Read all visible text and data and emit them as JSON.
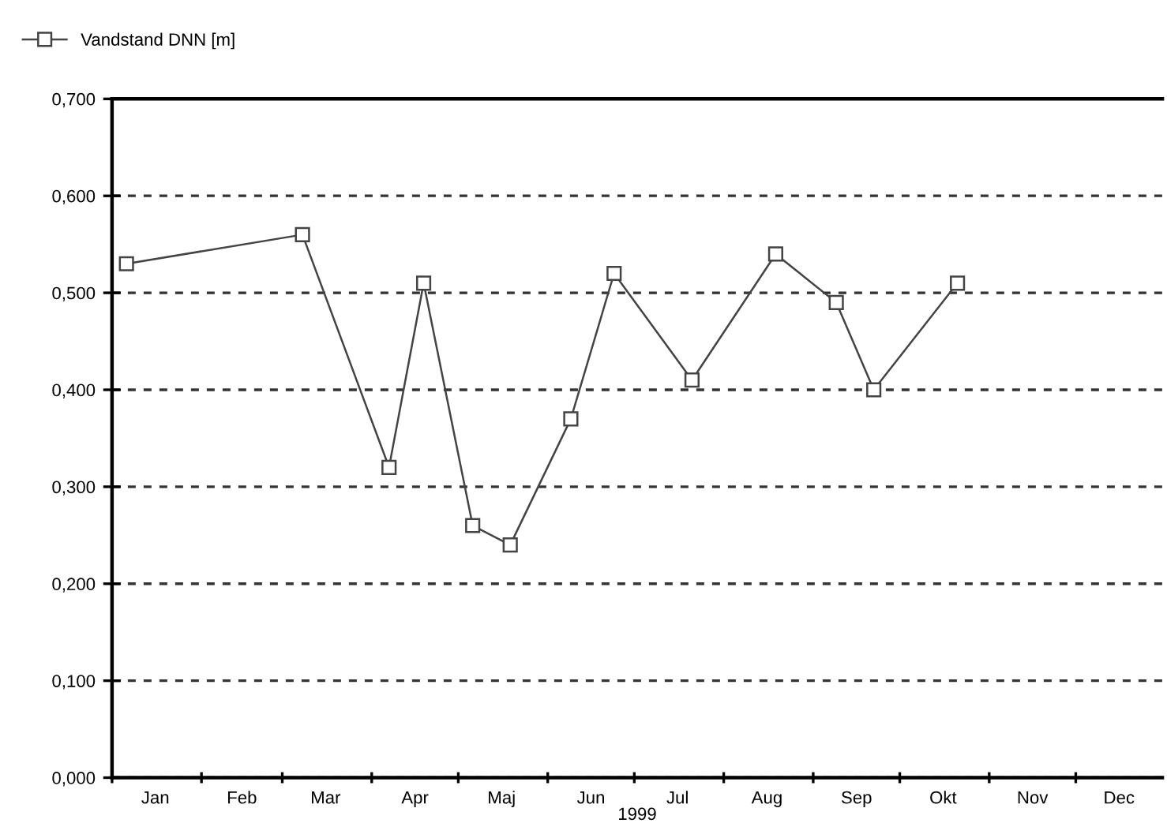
{
  "chart_data": {
    "type": "line",
    "xlabel": "1999",
    "x": [
      "1999-01-06",
      "1999-03-08",
      "1999-04-07",
      "1999-04-19",
      "1999-05-06",
      "1999-05-19",
      "1999-06-09",
      "1999-06-24",
      "1999-07-21",
      "1999-08-19",
      "1999-09-09",
      "1999-09-22",
      "1999-10-21"
    ],
    "series": [
      {
        "name": "Vandstand DNN [m]",
        "color": "#444444",
        "values": [
          0.53,
          0.56,
          0.32,
          0.51,
          0.26,
          0.24,
          0.37,
          0.52,
          0.41,
          0.54,
          0.49,
          0.4,
          0.51
        ]
      }
    ],
    "xlim": [
      "1999-01-01",
      "1999-12-31"
    ],
    "xticks": [
      {
        "value": "1999-01-01",
        "label": null
      },
      {
        "value": "1999-02-01",
        "label": null
      },
      {
        "value": "1999-03-01",
        "label": null
      },
      {
        "value": "1999-04-01",
        "label": null
      },
      {
        "value": "1999-05-01",
        "label": null
      },
      {
        "value": "1999-06-01",
        "label": null
      },
      {
        "value": "1999-07-01",
        "label": null
      },
      {
        "value": "1999-08-01",
        "label": null
      },
      {
        "value": "1999-09-01",
        "label": null
      },
      {
        "value": "1999-10-01",
        "label": null
      },
      {
        "value": "1999-11-01",
        "label": null
      },
      {
        "value": "1999-12-01",
        "label": null
      },
      {
        "value": "1999-01-16",
        "label": "Jan"
      },
      {
        "value": "1999-02-15",
        "label": "Feb"
      },
      {
        "value": "1999-03-16",
        "label": "Mar"
      },
      {
        "value": "1999-04-16",
        "label": "Apr"
      },
      {
        "value": "1999-05-16",
        "label": "Maj"
      },
      {
        "value": "1999-06-16",
        "label": "Jun"
      },
      {
        "value": "1999-07-16",
        "label": "Jul"
      },
      {
        "value": "1999-08-16",
        "label": "Aug"
      },
      {
        "value": "1999-09-16",
        "label": "Sep"
      },
      {
        "value": "1999-10-16",
        "label": "Okt"
      },
      {
        "value": "1999-11-16",
        "label": "Nov"
      },
      {
        "value": "1999-12-16",
        "label": "Dec"
      }
    ],
    "ylim": [
      0,
      0.7
    ],
    "yticks": [
      {
        "value": 0,
        "label": "0,000"
      },
      {
        "value": 0.1,
        "label": "0,100"
      },
      {
        "value": 0.2,
        "label": "0,200"
      },
      {
        "value": 0.3,
        "label": "0,300"
      },
      {
        "value": 0.4,
        "label": "0,400"
      },
      {
        "value": 0.5,
        "label": "0,500"
      },
      {
        "value": 0.6,
        "label": "0,600"
      },
      {
        "value": 0.7,
        "label": "0,700"
      }
    ],
    "grid": "y",
    "legend": "top left",
    "marker": "square",
    "line_style": "solid"
  }
}
